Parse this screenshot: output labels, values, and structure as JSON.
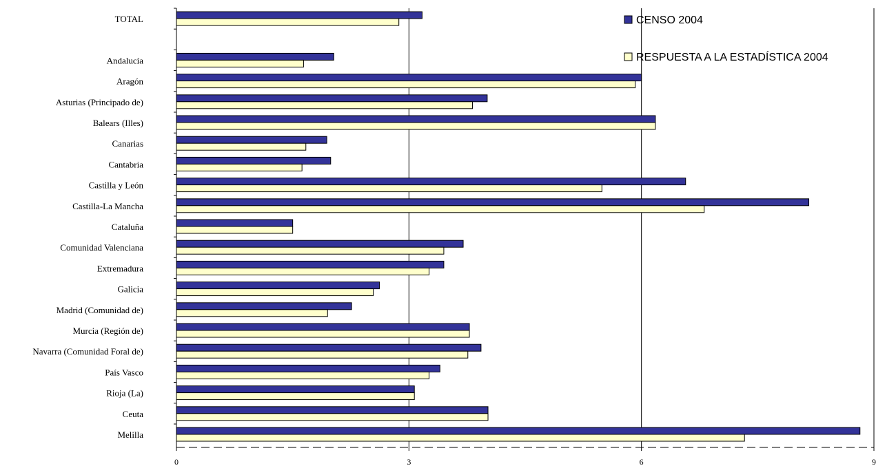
{
  "chart_data": {
    "type": "bar",
    "orientation": "horizontal",
    "categories": [
      "TOTAL",
      "",
      "Andalucía",
      "Aragón",
      "Asturias (Principado de)",
      "Balears (Illes)",
      "Canarias",
      "Cantabria",
      "Castilla y León",
      "Castilla-La Mancha",
      "Cataluña",
      "Comunidad Valenciana",
      "Extremadura",
      "Galicia",
      "Madrid (Comunidad de)",
      "Murcia (Región de)",
      "Navarra (Comunidad Foral de)",
      "País Vasco",
      "Rioja (La)",
      "Ceuta",
      "Melilla"
    ],
    "series": [
      {
        "name": "CENSO 2004",
        "color": "#333399",
        "values": [
          3.17,
          null,
          2.03,
          6.0,
          4.01,
          6.18,
          1.94,
          1.99,
          6.57,
          8.16,
          1.5,
          3.7,
          3.45,
          2.62,
          2.26,
          3.78,
          3.93,
          3.4,
          3.07,
          4.02,
          8.82
        ]
      },
      {
        "name": "RESPUESTA A LA ESTADÍSTICA 2004",
        "color": "#FFFFCC",
        "values": [
          2.87,
          null,
          1.64,
          5.92,
          3.82,
          6.18,
          1.67,
          1.62,
          5.49,
          6.81,
          1.5,
          3.45,
          3.26,
          2.54,
          1.95,
          3.78,
          3.76,
          3.26,
          3.07,
          4.02,
          7.33
        ]
      }
    ],
    "xlim": [
      0,
      9
    ],
    "xticks": [
      "0",
      "3",
      "6",
      "9"
    ],
    "grid": true,
    "legend_position": "top-right",
    "title": "",
    "xlabel": "",
    "ylabel": ""
  }
}
